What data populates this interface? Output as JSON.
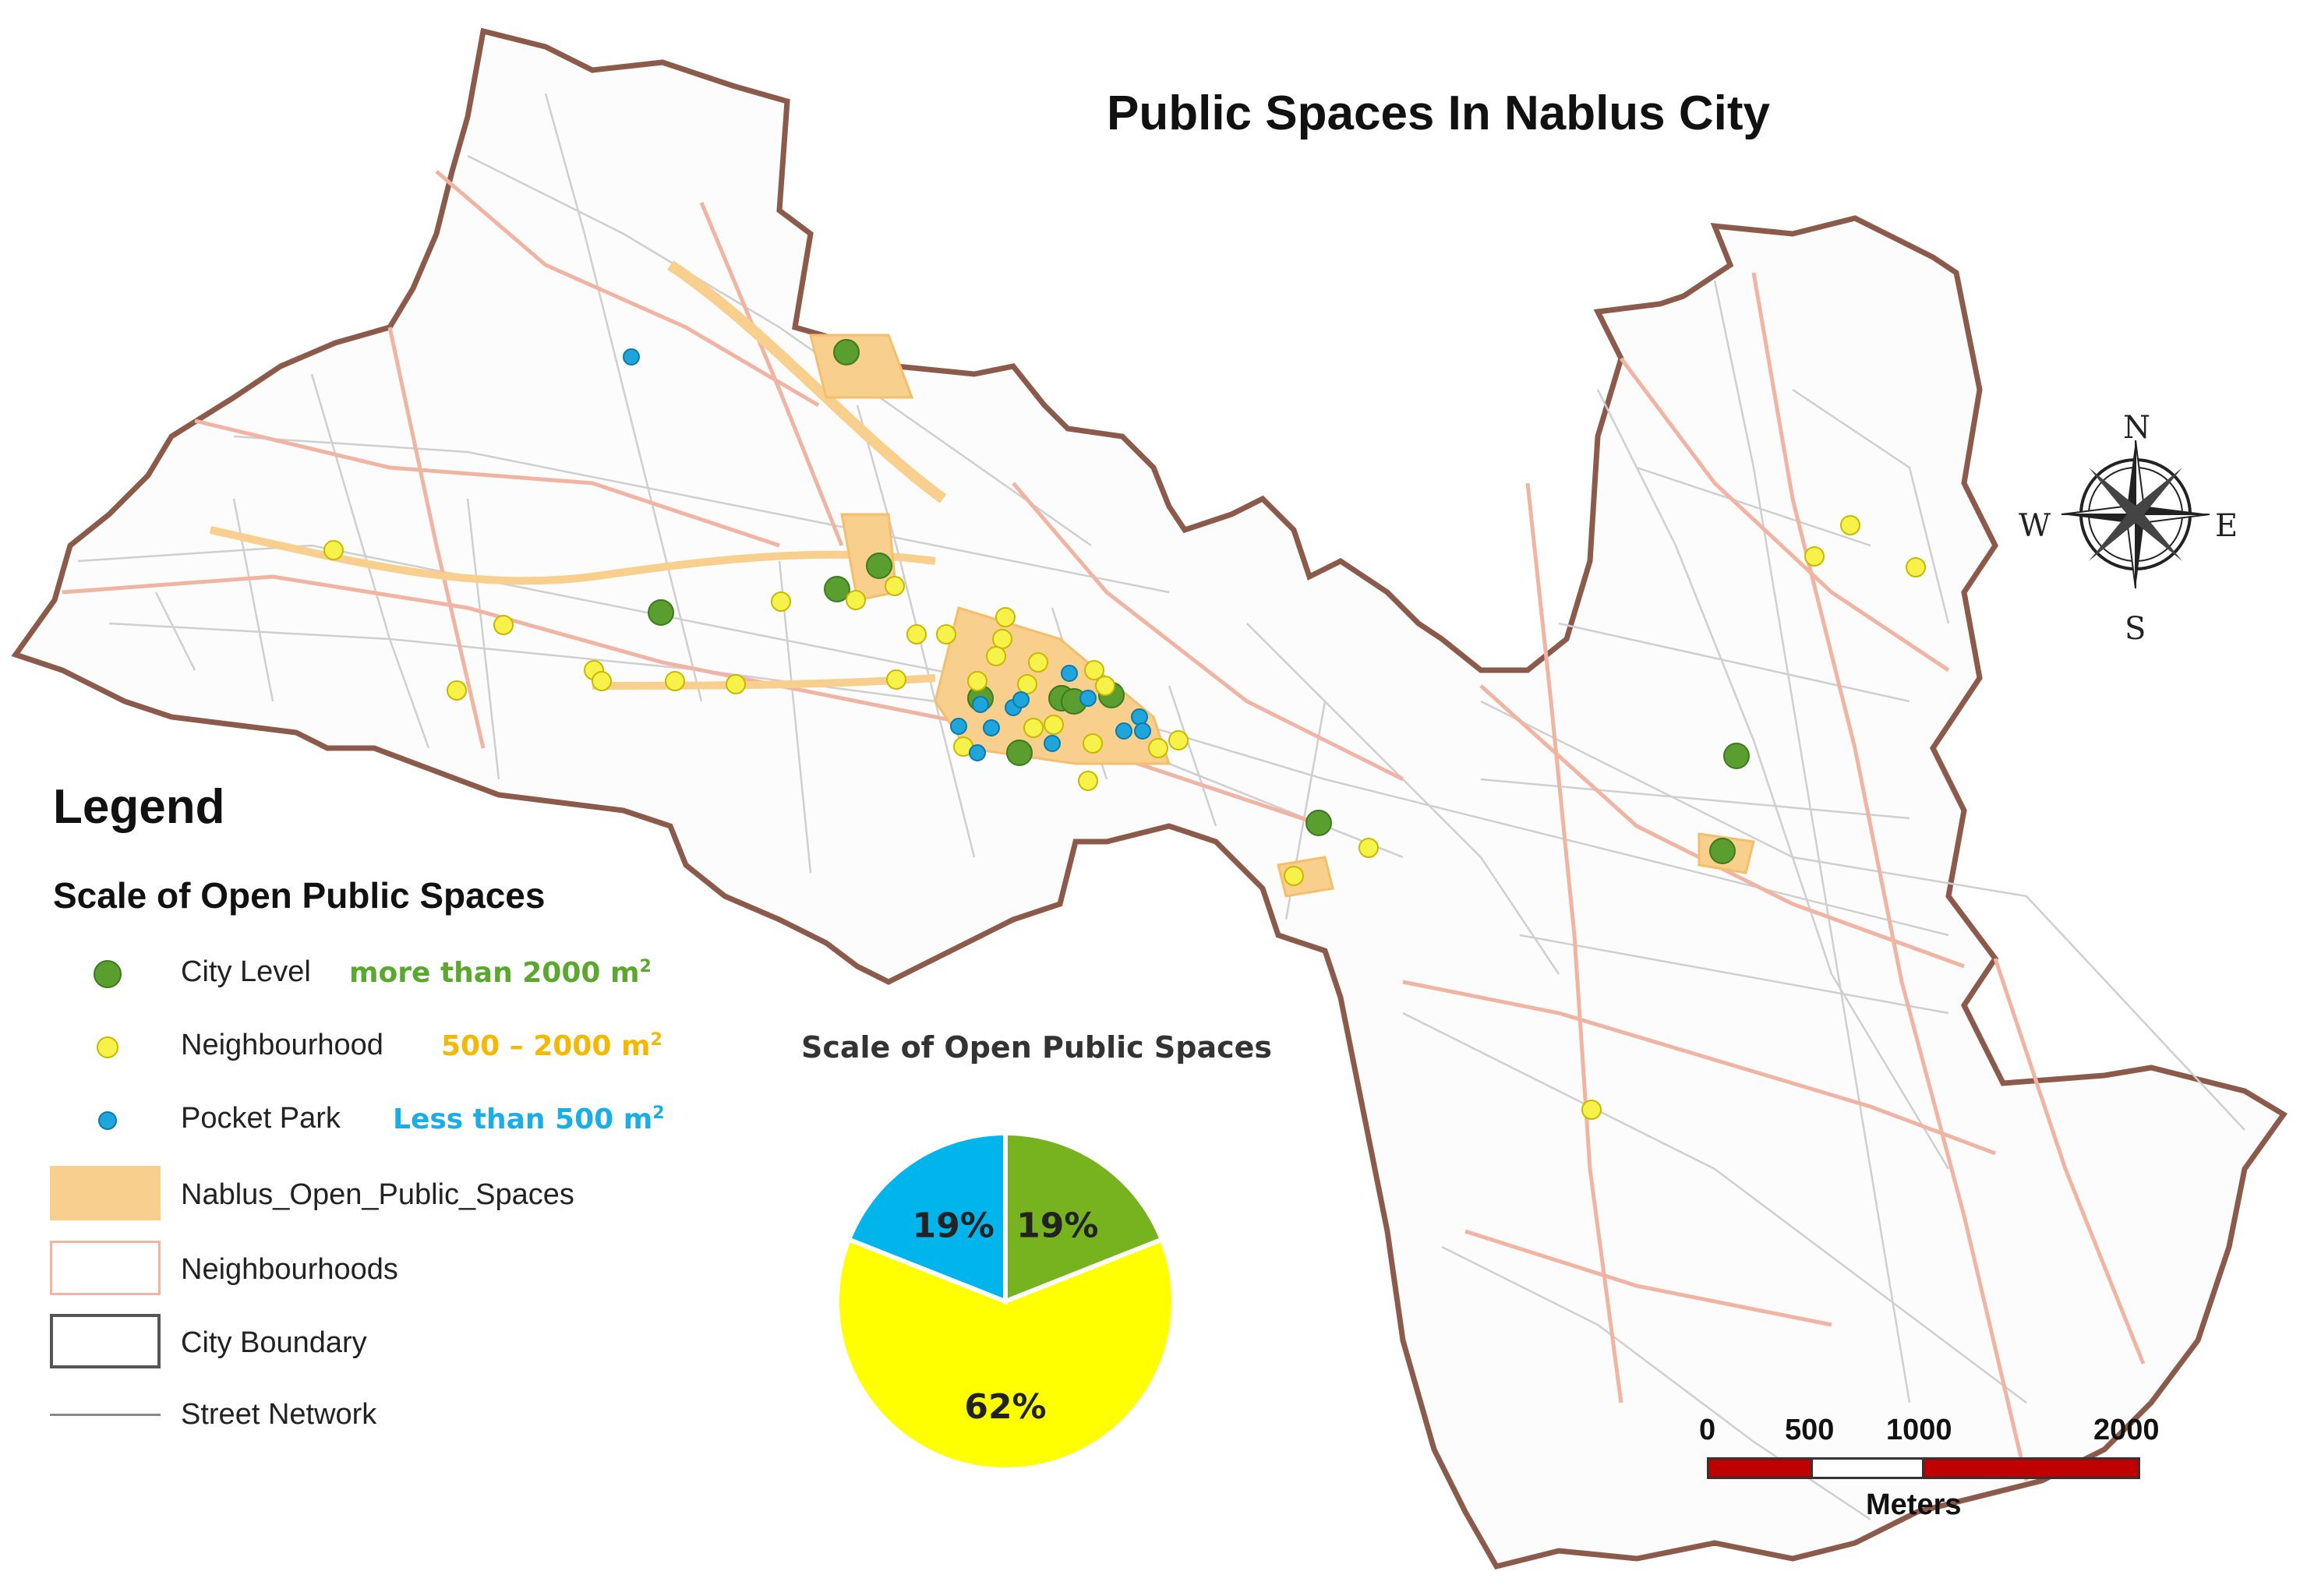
{
  "title": "Public Spaces In Nablus City",
  "legend": {
    "heading": "Legend",
    "subheading": "Scale of Open Public Spaces",
    "items": [
      {
        "label": "City Level",
        "range": "more than 2000 m",
        "sup": "2",
        "color": "#5a9e2f"
      },
      {
        "label": "Neighbourhood",
        "range": "500 – 2000 m",
        "sup": "2",
        "color": "#f7f24a"
      },
      {
        "label": "Pocket Park",
        "range": "Less than 500 m",
        "sup": "2",
        "color": "#1ea6dc"
      },
      {
        "label": "Nablus_Open_Public_Spaces",
        "color": "#f9cf8d"
      },
      {
        "label": "Neighbourhoods",
        "color": "#f2b4a2"
      },
      {
        "label": "City Boundary",
        "color": "#555555"
      },
      {
        "label": "Street Network",
        "color": "#888888"
      }
    ]
  },
  "chart_data": {
    "type": "pie",
    "title": "Scale of Open Public Spaces",
    "labels": [
      "City Level",
      "Neighbourhood",
      "Pocket Park"
    ],
    "values": [
      19,
      62,
      19
    ],
    "value_labels": [
      "19%",
      "62%",
      "19%"
    ],
    "colors": [
      "#77b31f",
      "#ffff00",
      "#00b4ec"
    ]
  },
  "compass": {
    "n": "N",
    "s": "S",
    "e": "E",
    "w": "W"
  },
  "scale_bar": {
    "ticks": [
      "0",
      "500",
      "1000",
      "2000"
    ],
    "unit": "Meters"
  },
  "colors": {
    "city_level": "#5a9e2f",
    "neighbourhood": "#f7f24a",
    "pocket_park": "#1ea6dc",
    "open_space": "#f9cf8d",
    "neighbourhood_line": "#f2b4a2",
    "boundary": "#7a4a3a"
  }
}
